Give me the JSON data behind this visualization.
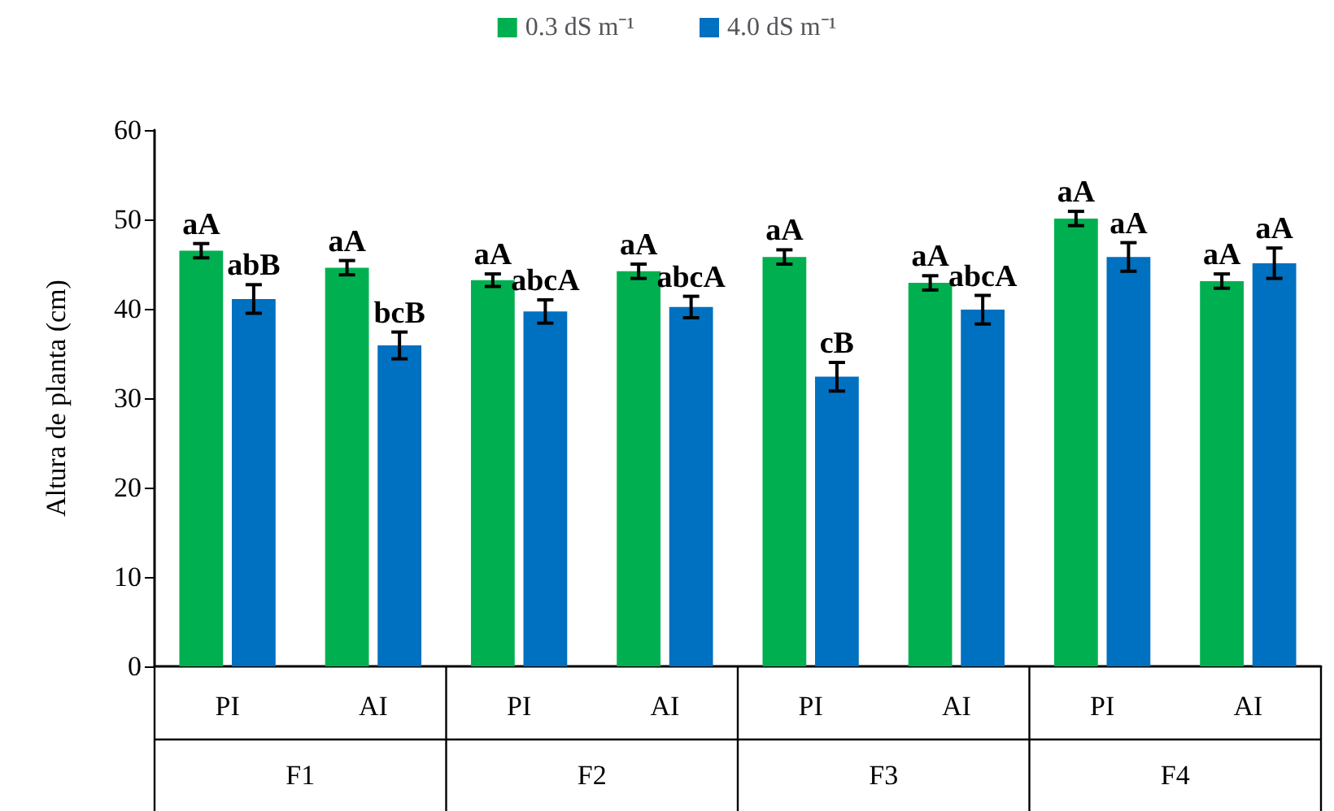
{
  "chart_data": {
    "type": "bar",
    "ylabel": "Altura de planta (cm)",
    "categories": [
      "PI",
      "AI",
      "PI",
      "AI",
      "PI",
      "AI",
      "PI",
      "AI"
    ],
    "annotations": [
      "F1",
      "F2",
      "F3",
      "F4"
    ],
    "series": [
      {
        "name": "0.3 dS m⁻¹",
        "color": "#00b050",
        "values": [
          46.5,
          44.6,
          43.2,
          44.2,
          45.8,
          42.9,
          50.1,
          43.1
        ],
        "errors": [
          0.8,
          0.8,
          0.7,
          0.8,
          0.8,
          0.8,
          0.8,
          0.8
        ],
        "value_labels": [
          "aA",
          "aA",
          "aA",
          "aA",
          "aA",
          "aA",
          "aA",
          "aA"
        ]
      },
      {
        "name": "4.0 dS m⁻¹",
        "color": "#0070c0",
        "values": [
          41.1,
          35.9,
          39.7,
          40.2,
          32.4,
          39.9,
          45.8,
          45.1
        ],
        "errors": [
          1.6,
          1.5,
          1.3,
          1.2,
          1.6,
          1.6,
          1.6,
          1.7
        ],
        "value_labels": [
          "abB",
          "bcB",
          "abcA",
          "abcA",
          "cB",
          "abcA",
          "aA",
          "aA"
        ]
      }
    ],
    "ylim": [
      0,
      60
    ],
    "yticks": [
      0,
      10,
      20,
      30,
      40,
      50,
      60
    ],
    "grid": false,
    "legend": "top"
  }
}
